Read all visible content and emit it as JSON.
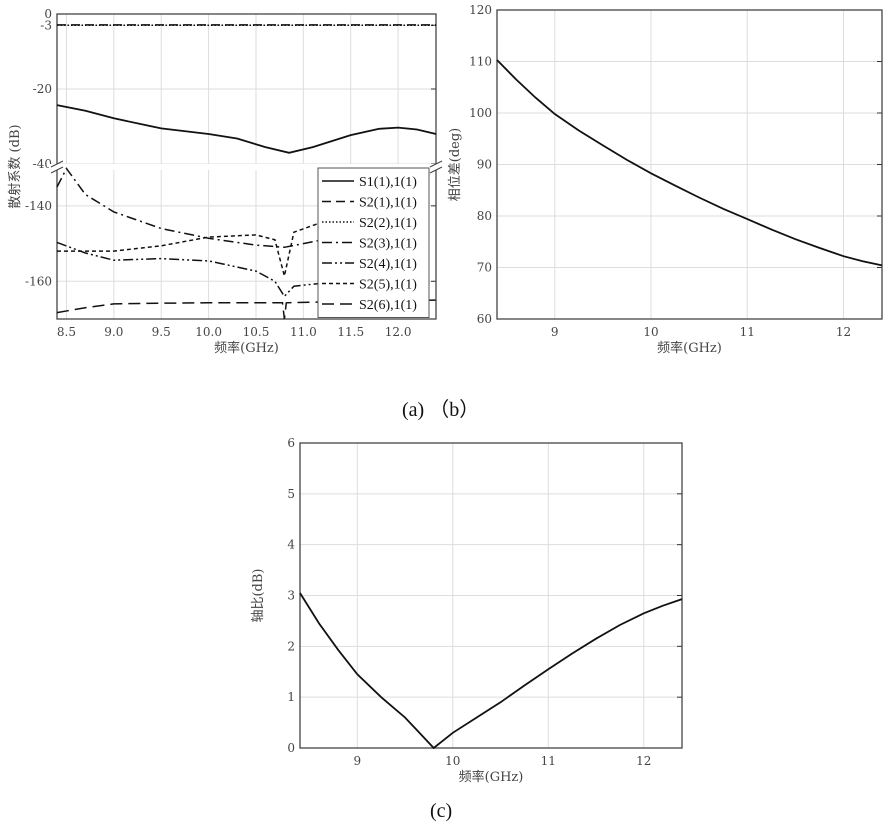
{
  "captions": {
    "ab": "(a)  （b）",
    "c": "(c)"
  },
  "chart_data": [
    {
      "type": "line",
      "title": "",
      "xlabel": "频率(GHz)",
      "ylabel": "散射系数 (dB)",
      "xlim": [
        8.4,
        12.4
      ],
      "xticks": [
        "8.5",
        "9.0",
        "9.5",
        "10.0",
        "10.5",
        "11.0",
        "11.5",
        "12.0"
      ],
      "y_broken_axis": {
        "upper": [
          -40,
          0
        ],
        "lower": [
          -170,
          -130.5
        ]
      },
      "yticks": [
        "0",
        "-3",
        "-20",
        "-40",
        "-140",
        "-160"
      ],
      "grid": true,
      "legend_position": "bottom-right",
      "series": [
        {
          "name": "S1(1),1(1)",
          "style": "solid",
          "x": [
            8.4,
            8.7,
            9.0,
            9.5,
            10.0,
            10.3,
            10.6,
            10.85,
            11.1,
            11.5,
            11.8,
            12.0,
            12.2,
            12.4
          ],
          "y": [
            -24.3,
            -25.8,
            -27.8,
            -30.5,
            -32,
            -33.2,
            -35.5,
            -37,
            -35.5,
            -32.3,
            -30.6,
            -30.3,
            -30.8,
            -32
          ]
        },
        {
          "name": "S2(1),1(1)",
          "style": "dashed",
          "x": [
            8.4,
            12.4
          ],
          "y": [
            -2.9,
            -2.9
          ]
        },
        {
          "name": "S2(2),1(1)",
          "style": "dotted",
          "x": [
            8.4,
            12.4
          ],
          "y": [
            -3.0,
            -3.0
          ]
        },
        {
          "name": "S2(3),1(1)",
          "style": "dashdot",
          "x": [
            8.4,
            8.5,
            8.7,
            9.0,
            9.5,
            10.0,
            10.5,
            10.8,
            11.0,
            11.2,
            11.5
          ],
          "y": [
            -135,
            -130.1,
            -137,
            -141.6,
            -146,
            -148.6,
            -150.4,
            -151,
            -150,
            -149,
            -147.5
          ]
        },
        {
          "name": "S2(4),1(1)",
          "style": "dashdotdot",
          "x": [
            8.4,
            8.7,
            9.0,
            9.5,
            10.0,
            10.5,
            10.7,
            10.8,
            10.9,
            11.2,
            11.5
          ],
          "y": [
            -149.7,
            -152.5,
            -154.4,
            -154,
            -154.6,
            -157.3,
            -160,
            -164,
            -161.3,
            -160.5,
            -160
          ]
        },
        {
          "name": "S2(5),1(1)",
          "style": "shortdash",
          "x": [
            8.4,
            9.0,
            9.5,
            10.0,
            10.5,
            10.7,
            10.8,
            10.9,
            11.2,
            11.5
          ],
          "y": [
            -152,
            -152,
            -150.6,
            -148.3,
            -147.7,
            -149,
            -158.6,
            -147,
            -144.3,
            -142
          ]
        },
        {
          "name": "S2(6),1(1)",
          "style": "longdash",
          "x": [
            8.4,
            8.7,
            9.0,
            9.5,
            10.0,
            10.5,
            10.78,
            10.8,
            10.82,
            11.2,
            12.4
          ],
          "y": [
            -168.3,
            -167,
            -166,
            -165.8,
            -165.7,
            -165.7,
            -165.7,
            -170,
            -165.7,
            -165.5,
            -165
          ]
        }
      ]
    },
    {
      "type": "line",
      "title": "",
      "xlabel": "频率(GHz)",
      "ylabel": "相位差(deg)",
      "xlim": [
        8.4,
        12.4
      ],
      "ylim": [
        60,
        120
      ],
      "xticks": [
        "9",
        "10",
        "11",
        "12"
      ],
      "yticks": [
        "60",
        "70",
        "80",
        "90",
        "100",
        "110",
        "120"
      ],
      "grid": true,
      "series": [
        {
          "name": "phase difference",
          "x": [
            8.4,
            8.6,
            8.8,
            9.0,
            9.25,
            9.5,
            9.75,
            10.0,
            10.25,
            10.5,
            10.75,
            11.0,
            11.25,
            11.5,
            11.75,
            12.0,
            12.2,
            12.4
          ],
          "y": [
            110.3,
            106.5,
            103,
            99.8,
            96.6,
            93.7,
            90.9,
            88.3,
            85.9,
            83.6,
            81.4,
            79.4,
            77.4,
            75.5,
            73.8,
            72.2,
            71.2,
            70.4
          ]
        }
      ]
    },
    {
      "type": "line",
      "title": "",
      "xlabel": "频率(GHz)",
      "ylabel": "轴比(dB)",
      "xlim": [
        8.4,
        12.4
      ],
      "ylim": [
        0,
        6
      ],
      "xticks": [
        "9",
        "10",
        "11",
        "12"
      ],
      "yticks": [
        "0",
        "1",
        "2",
        "3",
        "4",
        "5",
        "6"
      ],
      "grid": true,
      "series": [
        {
          "name": "axial ratio",
          "x": [
            8.4,
            8.6,
            8.8,
            9.0,
            9.25,
            9.5,
            9.65,
            9.8,
            10.0,
            10.25,
            10.5,
            10.75,
            11.0,
            11.25,
            11.5,
            11.75,
            12.0,
            12.2,
            12.4
          ],
          "y": [
            3.05,
            2.45,
            1.93,
            1.45,
            1.0,
            0.6,
            0.3,
            0.0,
            0.3,
            0.6,
            0.9,
            1.23,
            1.55,
            1.86,
            2.15,
            2.42,
            2.65,
            2.8,
            2.93
          ]
        }
      ]
    }
  ]
}
